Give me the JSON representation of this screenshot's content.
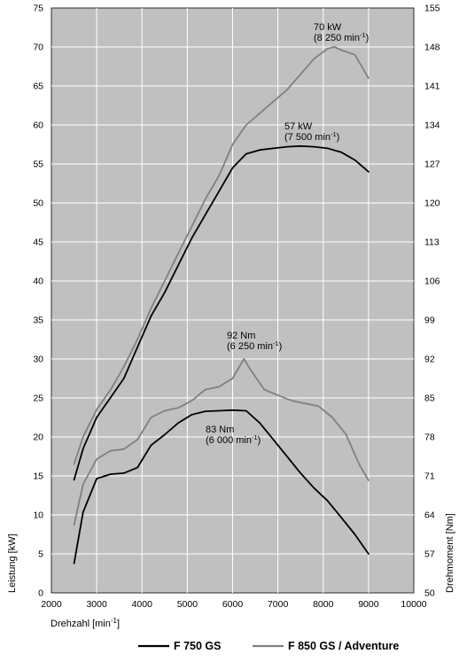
{
  "chart_data": {
    "type": "line",
    "title": "",
    "xlabel": "Drehzahl [min",
    "xlabel_sup": "-1",
    "xlabel_end": "]",
    "ylabel_left": "Leistung [kW]",
    "ylabel_right": "Drehmoment [Nm]",
    "xlim": [
      2000,
      10000
    ],
    "ylim_left": [
      0,
      75
    ],
    "ylim_right": [
      50,
      155
    ],
    "x_ticks": [
      "2000",
      "3000",
      "4000",
      "5000",
      "6000",
      "7000",
      "8000",
      "9000",
      "10000"
    ],
    "y_ticks_left": [
      "0",
      "5",
      "10",
      "15",
      "20",
      "25",
      "30",
      "35",
      "40",
      "45",
      "50",
      "55",
      "60",
      "65",
      "70",
      "75"
    ],
    "y_ticks_right": [
      "50",
      "57",
      "64",
      "71",
      "78",
      "85",
      "92",
      "99",
      "106",
      "113",
      "120",
      "127",
      "134",
      "141",
      "148",
      "155"
    ],
    "grid": true,
    "legend_position": "bottom",
    "colors": {
      "plot_bg": "#c0c0c0",
      "grid": "#ffffff",
      "f750": "#000000",
      "f850": "#808080"
    },
    "series": [
      {
        "name": "F 750 GS",
        "measure": "power",
        "axis": "left",
        "x": [
          2500,
          2700,
          3000,
          3300,
          3600,
          3900,
          4200,
          4500,
          4800,
          5100,
          5400,
          5700,
          6000,
          6300,
          6600,
          6900,
          7200,
          7500,
          7800,
          8100,
          8400,
          8700,
          9000
        ],
        "y": [
          14.5,
          18.5,
          22.5,
          25,
          27.5,
          31.5,
          35.5,
          38.5,
          42,
          45.5,
          48.5,
          51.5,
          54.5,
          56.3,
          56.8,
          57,
          57.2,
          57.3,
          57.2,
          57,
          56.5,
          55.5,
          54
        ]
      },
      {
        "name": "F 850 GS / Adventure",
        "measure": "power",
        "axis": "left",
        "x": [
          2500,
          2700,
          3000,
          3300,
          3600,
          3900,
          4200,
          4500,
          4800,
          5100,
          5400,
          5700,
          6000,
          6300,
          6600,
          6900,
          7200,
          7500,
          7800,
          8100,
          8250,
          8400,
          8700,
          9000
        ],
        "y": [
          16.5,
          20,
          23.5,
          26,
          29,
          32.5,
          36.5,
          40,
          43.5,
          47,
          50.5,
          53.5,
          57.5,
          60,
          61.5,
          63,
          64.5,
          66.5,
          68.5,
          69.8,
          70,
          69.6,
          69,
          66
        ]
      },
      {
        "name": "F 750 GS",
        "measure": "torque",
        "axis": "right",
        "x": [
          2500,
          2700,
          3000,
          3300,
          3600,
          3900,
          4200,
          4500,
          4800,
          5100,
          5400,
          5700,
          6000,
          6300,
          6600,
          6900,
          7200,
          7500,
          7800,
          8100,
          8400,
          8700,
          9000
        ],
        "y": [
          55.3,
          64.5,
          70.5,
          71.3,
          71.5,
          72.5,
          76.5,
          78.4,
          80.5,
          82,
          82.6,
          82.7,
          82.8,
          82.7,
          80.5,
          77.5,
          74.5,
          71.5,
          68.8,
          66.5,
          63.5,
          60.5,
          57
        ]
      },
      {
        "name": "F 850 GS / Adventure",
        "measure": "torque",
        "axis": "right",
        "x": [
          2500,
          2700,
          3000,
          3300,
          3600,
          3900,
          4200,
          4500,
          4800,
          5100,
          5400,
          5700,
          6000,
          6250,
          6400,
          6700,
          7000,
          7300,
          7600,
          7900,
          8200,
          8500,
          8800,
          9000
        ],
        "y": [
          62.2,
          69.5,
          74,
          75.5,
          75.8,
          77.5,
          81.5,
          82.7,
          83.2,
          84.5,
          86.5,
          87,
          88.5,
          92,
          90,
          86.5,
          85.5,
          84.5,
          84,
          83.5,
          81.5,
          78.5,
          73,
          70.2
        ]
      }
    ],
    "annotations": [
      {
        "line1": "70 kW",
        "line2": "(8 250 min",
        "sup": "-1",
        "end": ")"
      },
      {
        "line1": "57 kW",
        "line2": "(7 500 min",
        "sup": "-1",
        "end": ")"
      },
      {
        "line1": "92 Nm",
        "line2": "(6 250 min",
        "sup": "-1",
        "end": ")"
      },
      {
        "line1": "83 Nm",
        "line2": "(6 000 min",
        "sup": "-1",
        "end": ")"
      }
    ],
    "legend": [
      {
        "label": "F 750 GS",
        "color": "#000000"
      },
      {
        "label": "F 850 GS / Adventure",
        "color": "#808080"
      }
    ]
  }
}
